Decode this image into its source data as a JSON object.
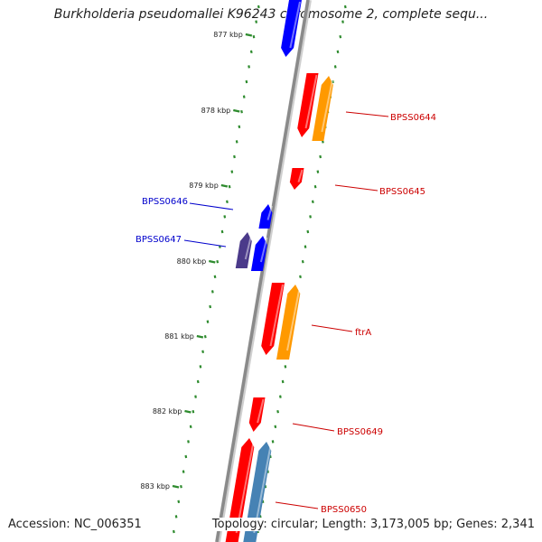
{
  "title": "Burkholderia pseudomallei K96243 chromosome 2, complete sequ...",
  "accession": "Accession: NC_006351",
  "topology": "Topology: circular; Length: 3,173,005 bp; Genes: 2,341",
  "ticks": [
    "877 kbp",
    "878 kbp",
    "879 kbp",
    "880 kbp",
    "881 kbp",
    "882 kbp",
    "883 kbp"
  ],
  "colors": {
    "backbone": "#8a8a8a",
    "tick_dots": "#2e8b2e",
    "red": "#ff0000",
    "orange": "#ff9900",
    "blue": "#0000ff",
    "purple": "#4b3a8a",
    "steelblue": "#4682b4",
    "label_red": "#cc0000",
    "label_blue": "#0000cc"
  },
  "gene_labels": [
    {
      "name": "BPSS0644",
      "color": "label_red"
    },
    {
      "name": "BPSS0645",
      "color": "label_red"
    },
    {
      "name": "BPSS0646",
      "color": "label_blue"
    },
    {
      "name": "BPSS0647",
      "color": "label_blue"
    },
    {
      "name": "ftrA",
      "color": "label_red"
    },
    {
      "name": "BPSS0649",
      "color": "label_red"
    },
    {
      "name": "BPSS0650",
      "color": "label_red"
    }
  ]
}
